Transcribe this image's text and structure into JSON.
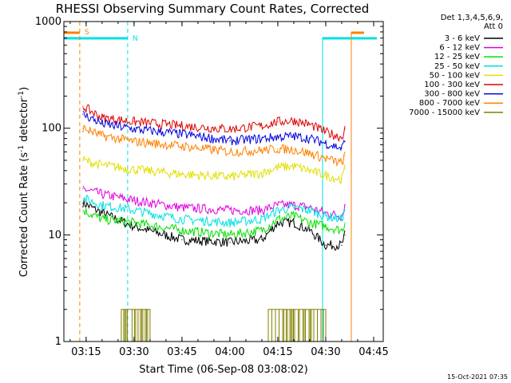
{
  "chart_data": {
    "type": "line",
    "title": "RHESSI Observing Summary Count Rates, Corrected",
    "xlabel": "Start Time (06-Sep-08 03:08:02)",
    "ylabel": "Corrected Count Rate (s⁻¹ detector⁻¹)",
    "ylabel_main": "Corrected Count Rate (s",
    "ylabel_mid": " detector",
    "ylabel_end": ")",
    "ylabel_sup": "-1",
    "yscale": "log",
    "ylim": [
      1,
      1000
    ],
    "xlim": [
      "03:08:02",
      "04:48:00"
    ],
    "grid": false,
    "legend_placement": "right",
    "x_ticks": [
      "03:15",
      "03:30",
      "03:45",
      "04:00",
      "04:15",
      "04:30",
      "04:45"
    ],
    "y_ticks": [
      "1",
      "10",
      "100",
      "1000"
    ],
    "legend_header": [
      "Det 1,3,4,5,6,9,",
      "Att 0"
    ],
    "series": [
      {
        "name": "3 - 6 keV",
        "color": "#000000",
        "points": [
          [
            "03:14",
            20
          ],
          [
            "03:20",
            16
          ],
          [
            "03:30",
            12
          ],
          [
            "03:45",
            9
          ],
          [
            "04:00",
            8.5
          ],
          [
            "04:10",
            9
          ],
          [
            "04:15",
            13
          ],
          [
            "04:20",
            13
          ],
          [
            "04:25",
            11
          ],
          [
            "04:30",
            8
          ],
          [
            "04:35",
            8
          ],
          [
            "04:36",
            10
          ]
        ]
      },
      {
        "name": "6 - 12 keV",
        "color": "#e000e0",
        "points": [
          [
            "03:14",
            27
          ],
          [
            "03:20",
            24
          ],
          [
            "03:30",
            21
          ],
          [
            "03:45",
            18
          ],
          [
            "04:00",
            17
          ],
          [
            "04:10",
            17
          ],
          [
            "04:15",
            19
          ],
          [
            "04:20",
            19
          ],
          [
            "04:25",
            18
          ],
          [
            "04:30",
            16
          ],
          [
            "04:35",
            15
          ],
          [
            "04:36",
            19
          ]
        ]
      },
      {
        "name": "12 - 25 keV",
        "color": "#00e000",
        "points": [
          [
            "03:14",
            17
          ],
          [
            "03:20",
            14
          ],
          [
            "03:30",
            13
          ],
          [
            "03:45",
            11
          ],
          [
            "04:00",
            10
          ],
          [
            "04:10",
            11
          ],
          [
            "04:15",
            14
          ],
          [
            "04:20",
            15
          ],
          [
            "04:25",
            13
          ],
          [
            "04:30",
            12
          ],
          [
            "04:35",
            11
          ],
          [
            "04:36",
            13
          ]
        ]
      },
      {
        "name": "25 - 50 keV",
        "color": "#00e0e0",
        "points": [
          [
            "03:14",
            22
          ],
          [
            "03:20",
            19
          ],
          [
            "03:30",
            17
          ],
          [
            "03:45",
            14
          ],
          [
            "04:00",
            13
          ],
          [
            "04:10",
            14
          ],
          [
            "04:15",
            17
          ],
          [
            "04:20",
            18
          ],
          [
            "04:25",
            17
          ],
          [
            "04:30",
            15
          ],
          [
            "04:35",
            14
          ],
          [
            "04:36",
            17
          ]
        ]
      },
      {
        "name": "50 - 100 keV",
        "color": "#e0e000",
        "points": [
          [
            "03:14",
            50
          ],
          [
            "03:20",
            45
          ],
          [
            "03:30",
            41
          ],
          [
            "03:45",
            37
          ],
          [
            "04:00",
            35
          ],
          [
            "04:10",
            38
          ],
          [
            "04:15",
            43
          ],
          [
            "04:20",
            44
          ],
          [
            "04:25",
            40
          ],
          [
            "04:30",
            36
          ],
          [
            "04:35",
            33
          ],
          [
            "04:36",
            42
          ]
        ]
      },
      {
        "name": "100 - 300 keV",
        "color": "#e00000",
        "points": [
          [
            "03:14",
            160
          ],
          [
            "03:20",
            125
          ],
          [
            "03:30",
            115
          ],
          [
            "03:45",
            105
          ],
          [
            "04:00",
            98
          ],
          [
            "04:10",
            105
          ],
          [
            "04:15",
            115
          ],
          [
            "04:20",
            118
          ],
          [
            "04:25",
            108
          ],
          [
            "04:30",
            92
          ],
          [
            "04:35",
            82
          ],
          [
            "04:36",
            98
          ]
        ]
      },
      {
        "name": "300 - 800 keV",
        "color": "#0000e0",
        "points": [
          [
            "03:14",
            135
          ],
          [
            "03:20",
            110
          ],
          [
            "03:30",
            98
          ],
          [
            "03:45",
            88
          ],
          [
            "04:00",
            76
          ],
          [
            "04:10",
            80
          ],
          [
            "04:15",
            83
          ],
          [
            "04:20",
            84
          ],
          [
            "04:25",
            80
          ],
          [
            "04:30",
            72
          ],
          [
            "04:35",
            65
          ],
          [
            "04:36",
            75
          ]
        ]
      },
      {
        "name": "800 - 7000 keV",
        "color": "#ff8000",
        "points": [
          [
            "03:14",
            100
          ],
          [
            "03:20",
            85
          ],
          [
            "03:30",
            75
          ],
          [
            "03:45",
            68
          ],
          [
            "04:00",
            60
          ],
          [
            "04:10",
            62
          ],
          [
            "04:15",
            64
          ],
          [
            "04:20",
            63
          ],
          [
            "04:25",
            58
          ],
          [
            "04:30",
            52
          ],
          [
            "04:35",
            47
          ],
          [
            "04:36",
            55
          ]
        ]
      },
      {
        "name": "7000 - 15000 keV",
        "color": "#808000",
        "segments": [
          [
            [
              "03:26",
              1
            ],
            [
              "03:26",
              2
            ],
            [
              "03:35",
              2
            ],
            [
              "03:35",
              1
            ]
          ],
          [
            [
              "04:12",
              1
            ],
            [
              "04:12",
              2
            ],
            [
              "04:30",
              2
            ],
            [
              "04:30",
              1
            ]
          ]
        ]
      }
    ],
    "annotations": [
      {
        "label": "S",
        "color": "#ff8000",
        "x": "03:13",
        "line_style": "dashed"
      },
      {
        "label": "N",
        "color": "#00e0e0",
        "x": "03:28",
        "line_style": "dashed"
      }
    ],
    "event_bars": [
      {
        "color": "#ff8000",
        "label": "S",
        "ranges": [
          [
            "03:08",
            "03:13"
          ],
          [
            "04:38",
            "04:42"
          ]
        ]
      },
      {
        "color": "#00e0e0",
        "label": "N",
        "ranges": [
          [
            "03:08",
            "03:28"
          ],
          [
            "04:29",
            "04:46"
          ]
        ]
      }
    ],
    "timestamp": "15-Oct-2021 07:35"
  }
}
